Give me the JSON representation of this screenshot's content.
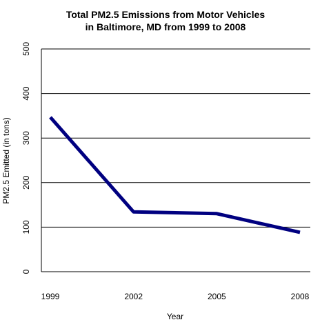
{
  "chart_data": {
    "type": "line",
    "title_lines": [
      "Total PM2.5 Emissions from Motor Vehicles",
      "in Baltimore, MD from 1999 to 2008"
    ],
    "xlabel": "Year",
    "ylabel": "PM2.5 Emitted (in tons)",
    "categories": [
      "1999",
      "2002",
      "2005",
      "2008"
    ],
    "values": [
      346.8,
      134.3,
      130.4,
      88.3
    ],
    "ylim": [
      0,
      500
    ],
    "yticks": [
      0,
      100,
      200,
      300,
      400,
      500
    ],
    "grid": "horizontal",
    "line_color": "#000080"
  }
}
